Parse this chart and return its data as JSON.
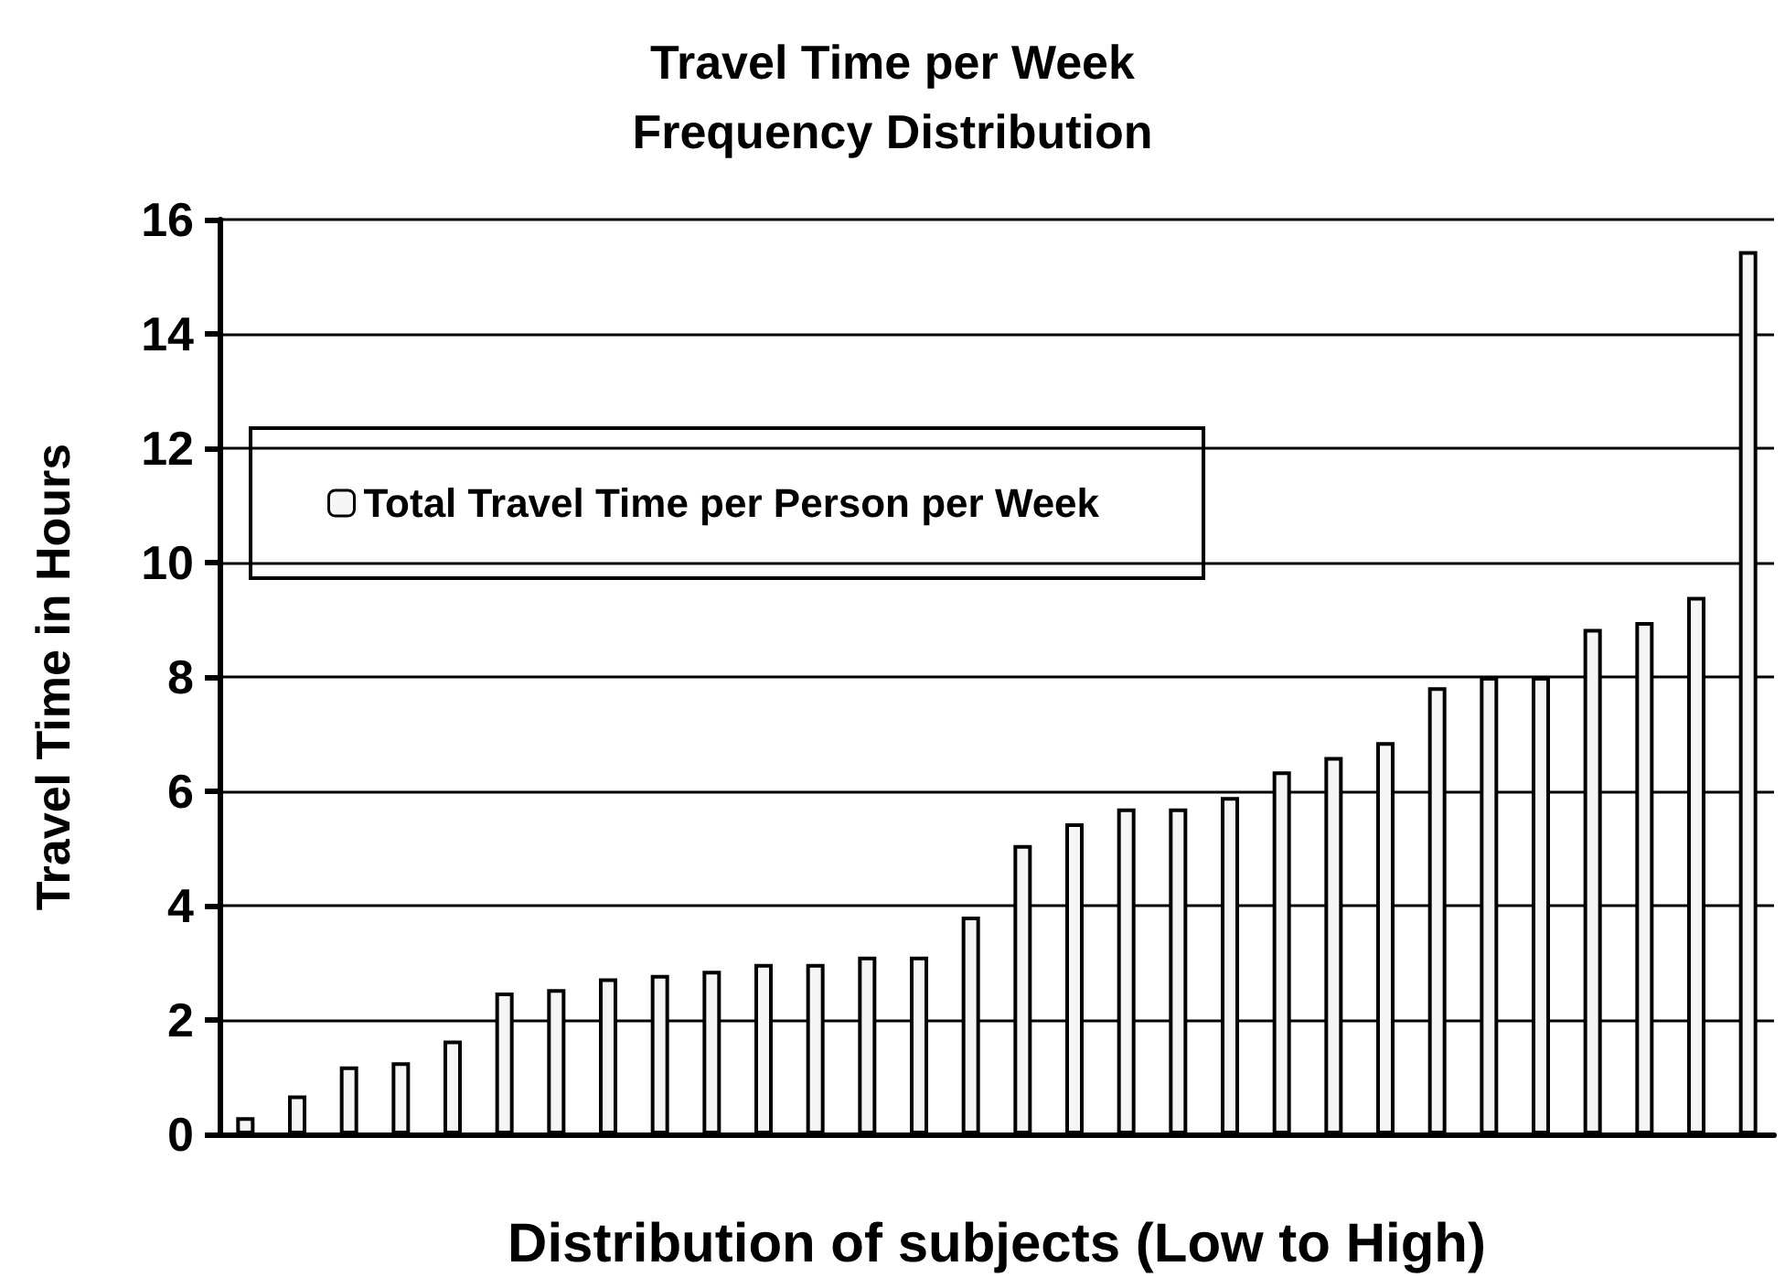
{
  "chart_data": {
    "type": "bar",
    "title": "Travel Time per Week\nFrequency Distribution",
    "xlabel": "Distribution of subjects (Low to High)",
    "ylabel": "Travel Time in Hours",
    "categories": [
      null,
      null,
      null,
      null,
      null,
      null,
      null,
      null,
      null,
      null,
      null,
      null,
      null,
      null,
      null,
      null,
      null,
      null,
      null,
      null,
      null,
      null,
      null,
      null,
      null,
      null,
      null,
      null,
      null,
      null
    ],
    "series": [
      {
        "name": "Total Travel Time per Person per Week",
        "color": "#f5f5f5",
        "values": [
          0.3,
          0.68,
          1.19,
          1.26,
          1.64,
          2.48,
          2.54,
          2.73,
          2.79,
          2.86,
          2.98,
          2.98,
          3.11,
          3.11,
          3.81,
          5.06,
          5.44,
          5.7,
          5.7,
          5.9,
          6.35,
          6.6,
          6.86,
          7.82,
          8.0,
          8.0,
          8.84,
          8.96,
          9.4,
          15.45
        ]
      }
    ],
    "ylim": [
      0,
      16
    ],
    "yticks": [
      0,
      2,
      4,
      6,
      8,
      10,
      12,
      14,
      16
    ],
    "grid": "y",
    "legend": "top left"
  }
}
